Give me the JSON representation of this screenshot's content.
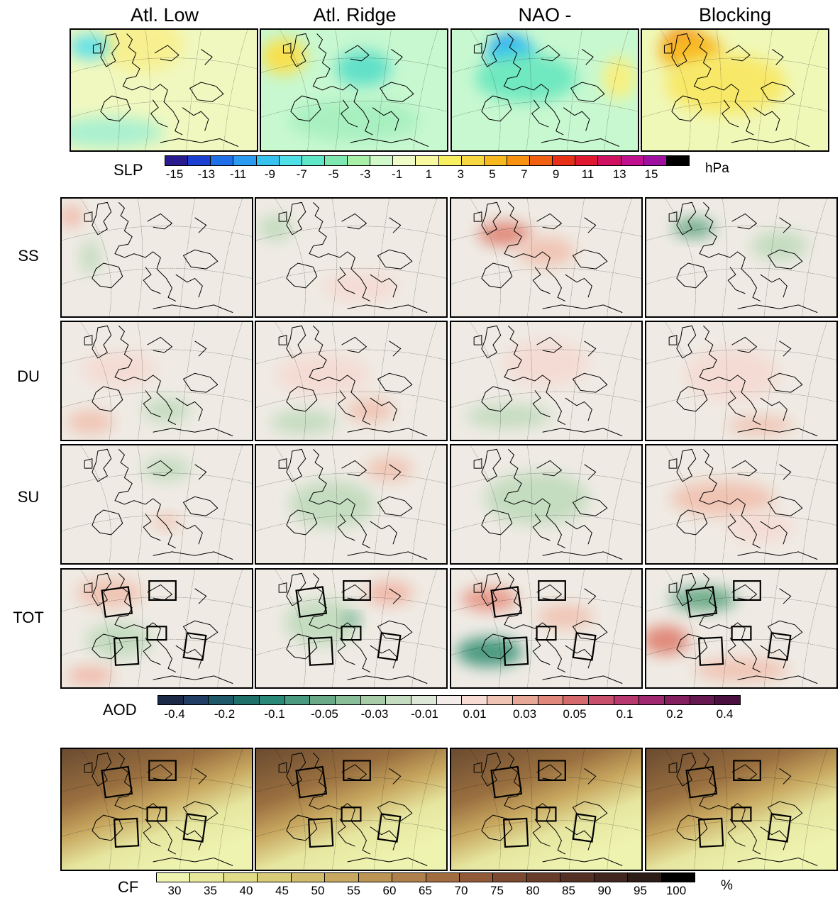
{
  "columns": [
    {
      "title": "Atl. Low"
    },
    {
      "title": "Atl. Ridge"
    },
    {
      "title": "NAO -"
    },
    {
      "title": "Blocking"
    }
  ],
  "rows": [
    {
      "label": "SS"
    },
    {
      "label": "DU"
    },
    {
      "label": "SU"
    },
    {
      "label": "TOT"
    }
  ],
  "slp_colorbar": {
    "label": "SLP",
    "unit": "hPa",
    "ticks": [
      "-15",
      "-13",
      "-11",
      "-9",
      "-7",
      "-5",
      "-3",
      "-1",
      "1",
      "3",
      "5",
      "7",
      "9",
      "11",
      "13",
      "15"
    ],
    "colors": [
      "#2a1a8f",
      "#1a3fd1",
      "#1f6fe8",
      "#2a9bf0",
      "#37c3f0",
      "#4fe0e8",
      "#5fe8c8",
      "#7fe8b0",
      "#a8f0a8",
      "#d0f8c8",
      "#f0fcc8",
      "#f8f8a0",
      "#f8f060",
      "#f8d840",
      "#f8b820",
      "#f89010",
      "#f06010",
      "#e83018",
      "#e01830",
      "#d01060",
      "#c01090",
      "#a010a0",
      "#000000"
    ]
  },
  "aod_colorbar": {
    "label": "AOD",
    "ticks": [
      "-0.4",
      "-0.2",
      "-0.1",
      "-0.05",
      "-0.03",
      "-0.01",
      "0.01",
      "0.03",
      "0.05",
      "0.1",
      "0.2",
      "0.4"
    ],
    "colors": [
      "#1c2a48",
      "#233e64",
      "#1f5868",
      "#1e7068",
      "#2a8878",
      "#4a9a80",
      "#6aaa88",
      "#8abe98",
      "#a8cca8",
      "#c4dcc0",
      "#dde8d8",
      "#f4ece8",
      "#f8dcd4",
      "#f0c4b4",
      "#e8a898",
      "#e0887c",
      "#d46a6c",
      "#c8506c",
      "#b83870",
      "#a02870",
      "#842060",
      "#681850",
      "#4c1040"
    ]
  },
  "cf_colorbar": {
    "label": "CF",
    "unit": "%",
    "ticks": [
      "30",
      "35",
      "40",
      "45",
      "50",
      "55",
      "60",
      "65",
      "70",
      "75",
      "80",
      "85",
      "90",
      "95",
      "100"
    ],
    "colors": [
      "#eef4b0",
      "#e8e89c",
      "#e0dc88",
      "#d8cc78",
      "#d0bc6c",
      "#c8a860",
      "#bc9454",
      "#b0804c",
      "#a06c40",
      "#905a38",
      "#7c4a30",
      "#683c2a",
      "#543024",
      "#40261e",
      "#2c1c18",
      "#000000"
    ]
  },
  "slp_fields": [
    [
      [
        "#f8f090",
        0.38,
        0.12,
        0.45,
        0.45
      ],
      [
        "#60e0e8",
        0.1,
        0.14,
        0.22,
        0.2
      ],
      [
        "#a8f0d0",
        0.2,
        0.85,
        0.6,
        0.25
      ]
    ],
    [
      [
        "#f8e050",
        0.12,
        0.22,
        0.25,
        0.3
      ],
      [
        "#60e0c8",
        0.55,
        0.32,
        0.3,
        0.3
      ],
      [
        "#a8f0c0",
        0.5,
        0.75,
        0.7,
        0.35
      ]
    ],
    [
      [
        "#1f6fe8",
        0.3,
        0.15,
        0.14,
        0.16
      ],
      [
        "#37c3f0",
        0.32,
        0.2,
        0.26,
        0.28
      ],
      [
        "#70e8c0",
        0.4,
        0.4,
        0.55,
        0.4
      ],
      [
        "#f8f080",
        0.9,
        0.4,
        0.18,
        0.35
      ]
    ],
    [
      [
        "#f06010",
        0.22,
        0.1,
        0.18,
        0.16
      ],
      [
        "#f8b820",
        0.26,
        0.18,
        0.34,
        0.32
      ],
      [
        "#f8e868",
        0.45,
        0.45,
        0.65,
        0.5
      ]
    ]
  ],
  "slp_backgrounds": [
    "#f0f8c0",
    "#c8f8d0",
    "#c8f8d0",
    "#f0f8b8"
  ],
  "aod_fields": [
    [
      [
        [
          "#f0b8a8",
          0.05,
          0.15,
          0.12,
          0.18
        ],
        [
          "#c4dcc0",
          0.15,
          0.5,
          0.1,
          0.3
        ]
      ],
      [
        [
          "#c4dcc0",
          0.1,
          0.25,
          0.18,
          0.22
        ],
        [
          "#f4dcd4",
          0.55,
          0.75,
          0.4,
          0.25
        ]
      ],
      [
        [
          "#e08878",
          0.28,
          0.3,
          0.28,
          0.2
        ],
        [
          "#f0c4b4",
          0.5,
          0.45,
          0.3,
          0.25
        ]
      ],
      [
        [
          "#6aaa88",
          0.25,
          0.25,
          0.22,
          0.16
        ],
        [
          "#c4dcc0",
          0.7,
          0.4,
          0.3,
          0.25
        ]
      ]
    ],
    [
      [
        [
          "#f4dcd4",
          0.3,
          0.4,
          0.4,
          0.3
        ],
        [
          "#c4dcc0",
          0.55,
          0.75,
          0.25,
          0.2
        ],
        [
          "#f0c4b4",
          0.15,
          0.85,
          0.25,
          0.2
        ]
      ],
      [
        [
          "#f4dcd4",
          0.35,
          0.45,
          0.5,
          0.35
        ],
        [
          "#f0c4b4",
          0.6,
          0.75,
          0.25,
          0.2
        ],
        [
          "#c4dcc0",
          0.25,
          0.85,
          0.35,
          0.2
        ]
      ],
      [
        [
          "#c4dcc0",
          0.3,
          0.8,
          0.45,
          0.2
        ],
        [
          "#f4dcd4",
          0.5,
          0.35,
          0.45,
          0.4
        ]
      ],
      [
        [
          "#f4dcd4",
          0.45,
          0.45,
          0.5,
          0.45
        ],
        [
          "#f0c4b4",
          0.6,
          0.88,
          0.35,
          0.15
        ]
      ]
    ],
    [
      [
        [
          "#c4dcc0",
          0.55,
          0.2,
          0.25,
          0.2
        ],
        [
          "#f0c4b4",
          0.55,
          0.65,
          0.15,
          0.12
        ]
      ],
      [
        [
          "#c4dcc0",
          0.4,
          0.5,
          0.45,
          0.4
        ],
        [
          "#f0c4b4",
          0.7,
          0.2,
          0.25,
          0.2
        ]
      ],
      [
        [
          "#c4dcc0",
          0.45,
          0.45,
          0.55,
          0.45
        ]
      ],
      [
        [
          "#f0c4b4",
          0.4,
          0.45,
          0.55,
          0.3
        ],
        [
          "#f4dcd4",
          0.6,
          0.7,
          0.35,
          0.25
        ]
      ]
    ],
    [
      [
        [
          "#f0c4b4",
          0.25,
          0.2,
          0.35,
          0.25
        ],
        [
          "#c4dcc0",
          0.3,
          0.6,
          0.35,
          0.3
        ],
        [
          "#f0b8a8",
          0.15,
          0.9,
          0.25,
          0.15
        ]
      ],
      [
        [
          "#c4dcc0",
          0.35,
          0.45,
          0.4,
          0.4
        ],
        [
          "#f0b8a8",
          0.7,
          0.2,
          0.25,
          0.2
        ],
        [
          "#4a9a80",
          0.5,
          0.42,
          0.08,
          0.08
        ]
      ],
      [
        [
          "#e89888",
          0.2,
          0.25,
          0.3,
          0.2
        ],
        [
          "#4a9a80",
          0.2,
          0.7,
          0.35,
          0.25
        ],
        [
          "#f0c4b4",
          0.6,
          0.4,
          0.3,
          0.2
        ]
      ],
      [
        [
          "#e08878",
          0.1,
          0.6,
          0.25,
          0.25
        ],
        [
          "#6aaa88",
          0.3,
          0.25,
          0.35,
          0.2
        ],
        [
          "#f0c4b4",
          0.5,
          0.85,
          0.5,
          0.2
        ]
      ]
    ]
  ]
}
